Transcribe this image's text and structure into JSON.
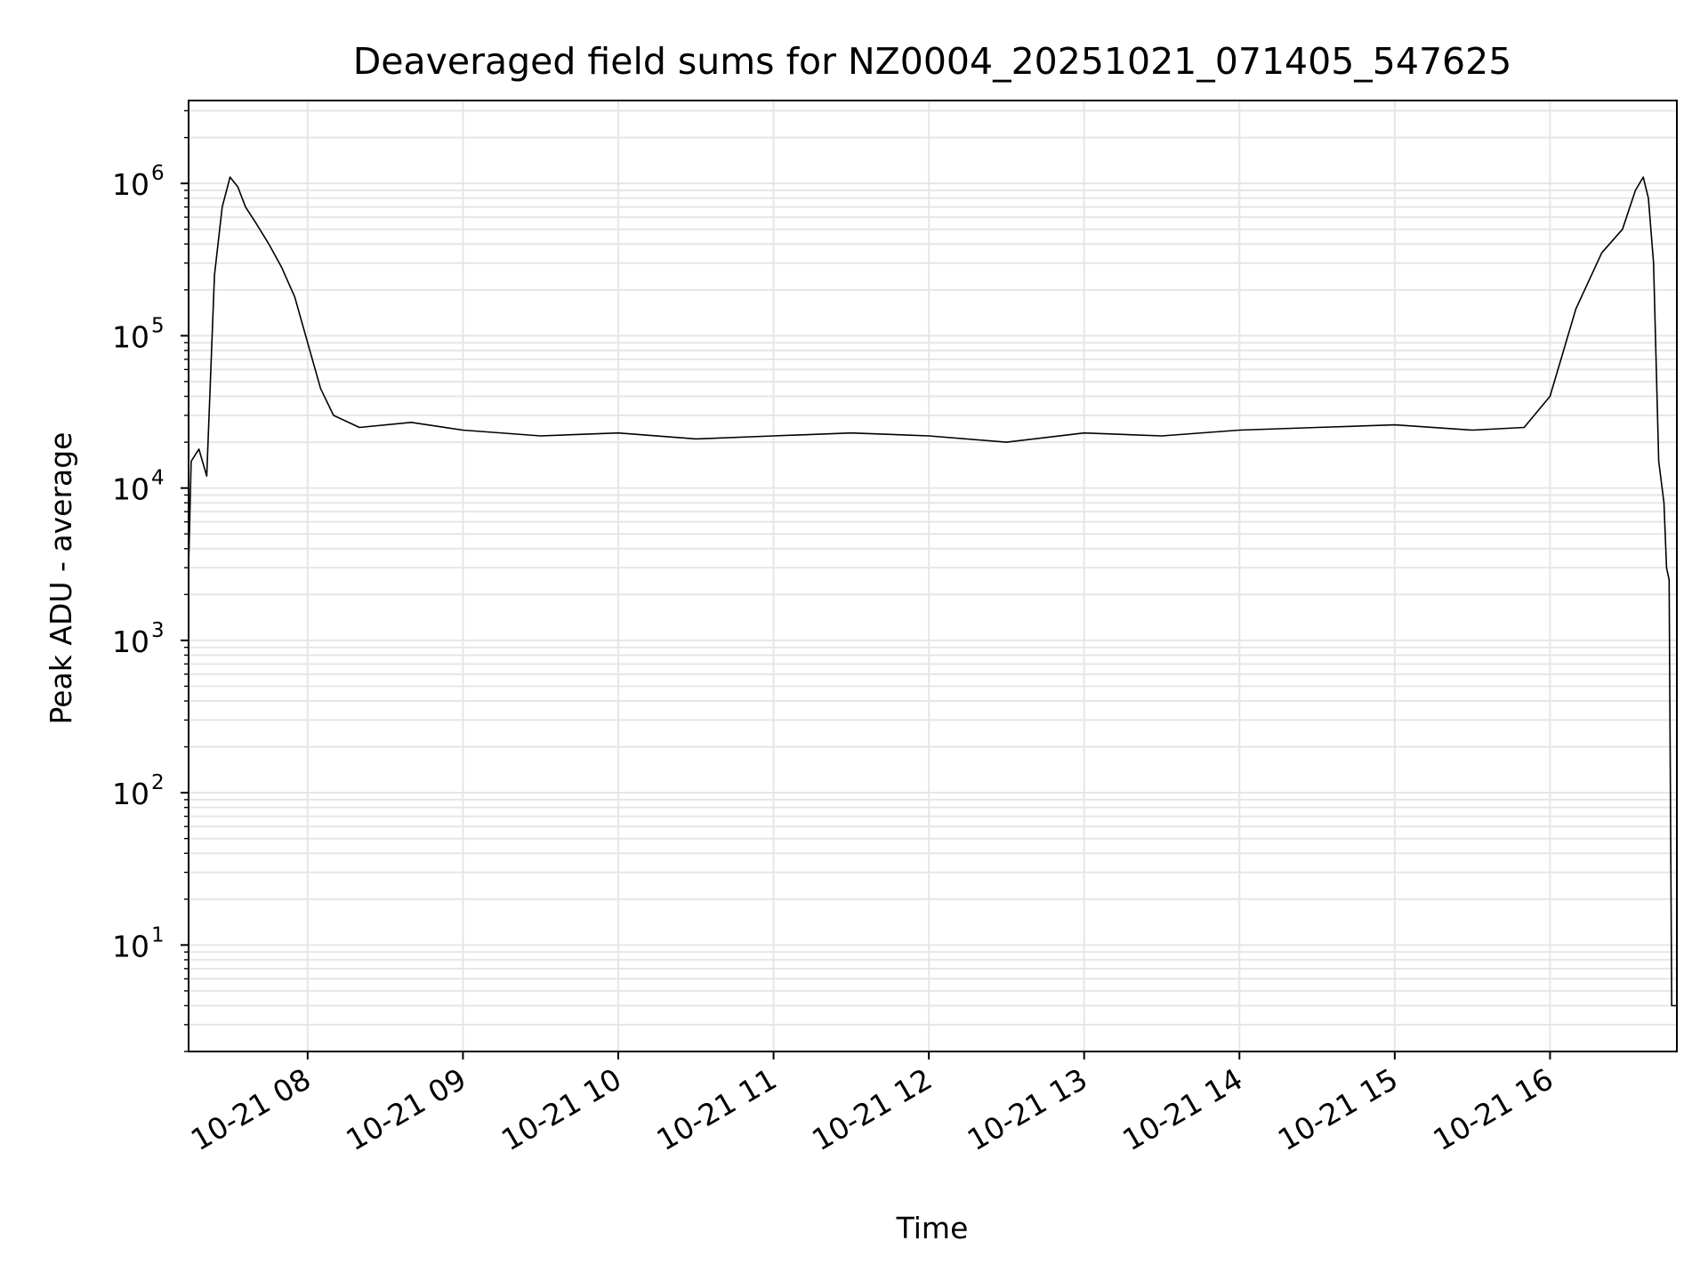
{
  "chart_data": {
    "type": "line",
    "title": "Deaveraged field sums for NZ0004_20251021_071405_547625",
    "xlabel": "Time",
    "ylabel": "Peak ADU - average",
    "yscale": "log",
    "xlim": [
      "2025-10-21 07:14",
      "2025-10-21 16:49"
    ],
    "ylim": [
      2,
      3500000
    ],
    "x_ticks": [
      "2025-10-21 08:00",
      "2025-10-21 09:00",
      "2025-10-21 10:00",
      "2025-10-21 11:00",
      "2025-10-21 12:00",
      "2025-10-21 13:00",
      "2025-10-21 14:00",
      "2025-10-21 15:00",
      "2025-10-21 16:00"
    ],
    "x_tick_labels": [
      "10-21 08",
      "10-21 09",
      "10-21 10",
      "10-21 11",
      "10-21 12",
      "10-21 13",
      "10-21 14",
      "10-21 15",
      "10-21 16"
    ],
    "y_ticks": [
      10,
      100,
      1000,
      10000,
      100000,
      1000000
    ],
    "y_tick_labels": [
      {
        "base": "10",
        "exp": "1"
      },
      {
        "base": "10",
        "exp": "2"
      },
      {
        "base": "10",
        "exp": "3"
      },
      {
        "base": "10",
        "exp": "4"
      },
      {
        "base": "10",
        "exp": "5"
      },
      {
        "base": "10",
        "exp": "6"
      }
    ],
    "grid": true,
    "legend": "none",
    "series_color": "#000000",
    "grid_color": "#e6e6e6",
    "series": [
      {
        "x": [
          "2025-10-21 07:14",
          "2025-10-21 07:15",
          "2025-10-21 07:18",
          "2025-10-21 07:21",
          "2025-10-21 07:24",
          "2025-10-21 07:27",
          "2025-10-21 07:30",
          "2025-10-21 07:33",
          "2025-10-21 07:36",
          "2025-10-21 07:40",
          "2025-10-21 07:45",
          "2025-10-21 07:50",
          "2025-10-21 07:55",
          "2025-10-21 08:00",
          "2025-10-21 08:05",
          "2025-10-21 08:10",
          "2025-10-21 08:20",
          "2025-10-21 08:40",
          "2025-10-21 09:00",
          "2025-10-21 09:30",
          "2025-10-21 10:00",
          "2025-10-21 10:30",
          "2025-10-21 11:00",
          "2025-10-21 11:30",
          "2025-10-21 12:00",
          "2025-10-21 12:30",
          "2025-10-21 13:00",
          "2025-10-21 13:30",
          "2025-10-21 14:00",
          "2025-10-21 14:30",
          "2025-10-21 15:00",
          "2025-10-21 15:30",
          "2025-10-21 15:50",
          "2025-10-21 16:00",
          "2025-10-21 16:10",
          "2025-10-21 16:20",
          "2025-10-21 16:28",
          "2025-10-21 16:33",
          "2025-10-21 16:36",
          "2025-10-21 16:38",
          "2025-10-21 16:40",
          "2025-10-21 16:42",
          "2025-10-21 16:44",
          "2025-10-21 16:45",
          "2025-10-21 16:46",
          "2025-10-21 16:47",
          "2025-10-21 16:48",
          "2025-10-21 16:49"
        ],
        "y": [
          3000,
          15000,
          18000,
          12000,
          250000,
          700000,
          1100000,
          950000,
          700000,
          550000,
          400000,
          280000,
          180000,
          90000,
          45000,
          30000,
          25000,
          27000,
          24000,
          22000,
          23000,
          21000,
          22000,
          23000,
          22000,
          20000,
          23000,
          22000,
          24000,
          25000,
          26000,
          24000,
          25000,
          40000,
          150000,
          350000,
          500000,
          900000,
          1100000,
          800000,
          300000,
          15000,
          8000,
          3000,
          2500,
          4,
          4,
          4
        ]
      }
    ]
  }
}
